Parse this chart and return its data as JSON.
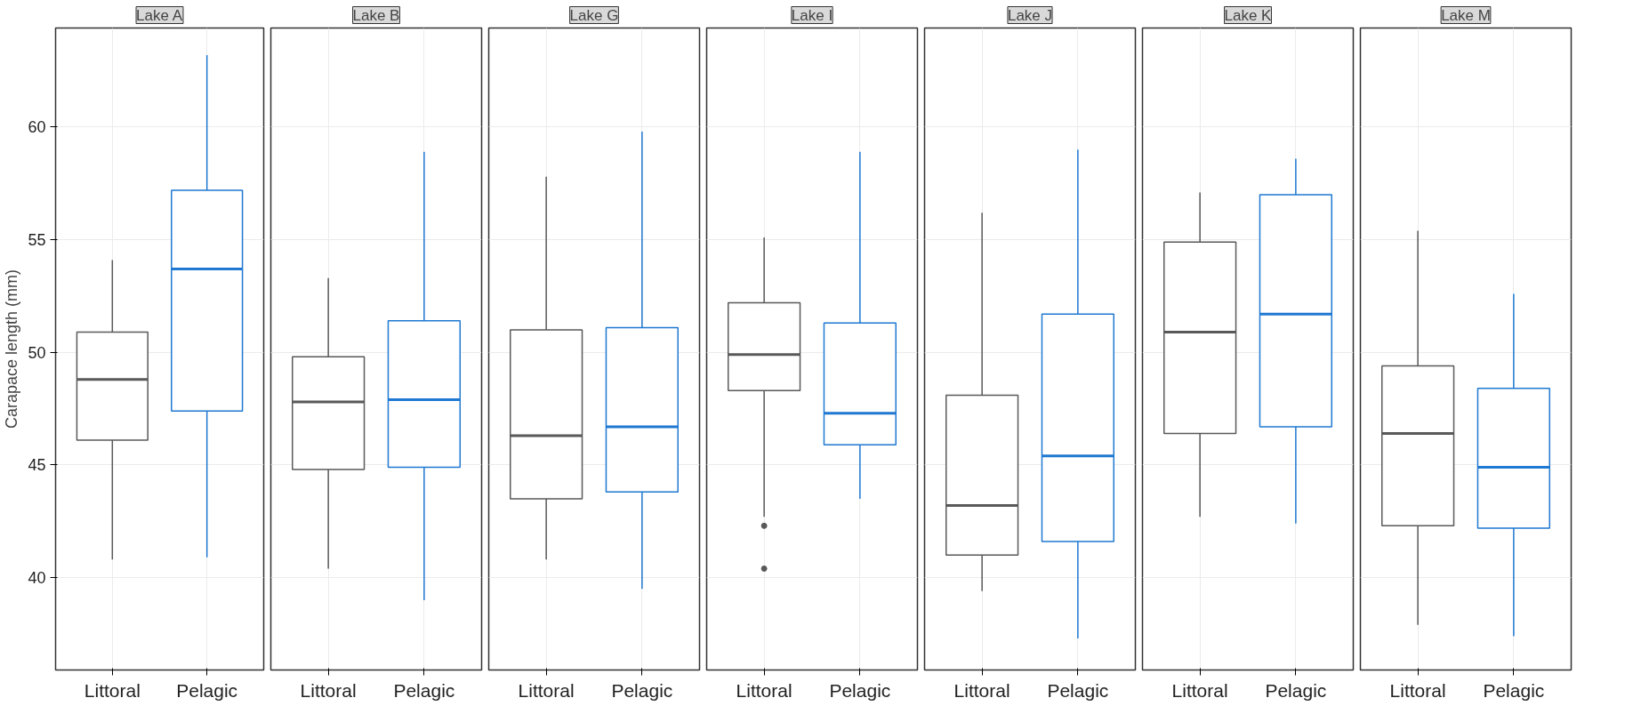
{
  "chart_data": [
    {
      "type": "box",
      "title": "Lake A",
      "ylabel": "Carapace length (mm)",
      "categories": [
        "Littoral",
        "Pelagic"
      ],
      "colors": [
        "#595959",
        "#1f78d1"
      ],
      "ylim": [
        35.9,
        64.4
      ],
      "yticks": [
        40,
        45,
        50,
        55,
        60
      ],
      "grid": true,
      "boxes": [
        {
          "low": 40.8,
          "q1": 46.1,
          "median": 48.8,
          "q3": 50.9,
          "high": 54.1
        },
        {
          "low": 40.9,
          "q1": 47.4,
          "median": 53.7,
          "q3": 57.2,
          "high": 63.2
        }
      ]
    },
    {
      "type": "box",
      "title": "Lake B",
      "categories": [
        "Littoral",
        "Pelagic"
      ],
      "colors": [
        "#595959",
        "#1f78d1"
      ],
      "ylim": [
        35.9,
        64.4
      ],
      "yticks": [
        40,
        45,
        50,
        55,
        60
      ],
      "grid": true,
      "tick_labels": "x",
      "boxes": [
        {
          "low": 40.4,
          "q1": 44.8,
          "median": 47.8,
          "q3": 49.8,
          "high": 53.3
        },
        {
          "low": 39.0,
          "q1": 44.9,
          "median": 47.9,
          "q3": 51.4,
          "high": 58.9
        }
      ]
    },
    {
      "type": "box",
      "title": "Lake G",
      "categories": [
        "Littoral",
        "Pelagic"
      ],
      "colors": [
        "#595959",
        "#1f78d1"
      ],
      "ylim": [
        35.9,
        64.4
      ],
      "yticks": [
        40,
        45,
        50,
        55,
        60
      ],
      "grid": true,
      "tick_labels": "x",
      "boxes": [
        {
          "low": 40.8,
          "q1": 43.5,
          "median": 46.3,
          "q3": 51.0,
          "high": 57.8
        },
        {
          "low": 39.5,
          "q1": 43.8,
          "median": 46.7,
          "q3": 51.1,
          "high": 59.8
        }
      ]
    },
    {
      "type": "box",
      "title": "Lake I",
      "categories": [
        "Littoral",
        "Pelagic"
      ],
      "colors": [
        "#595959",
        "#1f78d1"
      ],
      "ylim": [
        35.9,
        64.4
      ],
      "yticks": [
        40,
        45,
        50,
        55,
        60
      ],
      "grid": true,
      "tick_labels": "x",
      "boxes": [
        {
          "low": 42.7,
          "q1": 48.3,
          "median": 49.9,
          "q3": 52.2,
          "high": 55.1,
          "outliers": [
            42.3,
            40.4
          ]
        },
        {
          "low": 43.5,
          "q1": 45.9,
          "median": 47.3,
          "q3": 51.3,
          "high": 58.9
        }
      ]
    },
    {
      "type": "box",
      "title": "Lake J",
      "categories": [
        "Littoral",
        "Pelagic"
      ],
      "colors": [
        "#595959",
        "#1f78d1"
      ],
      "ylim": [
        35.9,
        64.4
      ],
      "yticks": [
        40,
        45,
        50,
        55,
        60
      ],
      "grid": true,
      "tick_labels": "x",
      "boxes": [
        {
          "low": 39.4,
          "q1": 41.0,
          "median": 43.2,
          "q3": 48.1,
          "high": 56.2
        },
        {
          "low": 37.3,
          "q1": 41.6,
          "median": 45.4,
          "q3": 51.7,
          "high": 59.0
        }
      ]
    },
    {
      "type": "box",
      "title": "Lake K",
      "categories": [
        "Littoral",
        "Pelagic"
      ],
      "colors": [
        "#595959",
        "#1f78d1"
      ],
      "ylim": [
        35.9,
        64.4
      ],
      "yticks": [
        40,
        45,
        50,
        55,
        60
      ],
      "grid": true,
      "tick_labels": "x",
      "boxes": [
        {
          "low": 42.7,
          "q1": 46.4,
          "median": 50.9,
          "q3": 54.9,
          "high": 57.1
        },
        {
          "low": 42.4,
          "q1": 46.7,
          "median": 51.7,
          "q3": 57.0,
          "high": 58.6
        }
      ]
    },
    {
      "type": "box",
      "title": "Lake M",
      "categories": [
        "Littoral",
        "Pelagic"
      ],
      "colors": [
        "#595959",
        "#1f78d1"
      ],
      "ylim": [
        35.9,
        64.4
      ],
      "yticks": [
        40,
        45,
        50,
        55,
        60
      ],
      "grid": true,
      "tick_labels": "x",
      "boxes": [
        {
          "low": 37.9,
          "q1": 42.3,
          "median": 46.4,
          "q3": 49.4,
          "high": 55.4
        },
        {
          "low": 37.4,
          "q1": 42.2,
          "median": 44.9,
          "q3": 48.4,
          "high": 52.6
        }
      ]
    }
  ]
}
